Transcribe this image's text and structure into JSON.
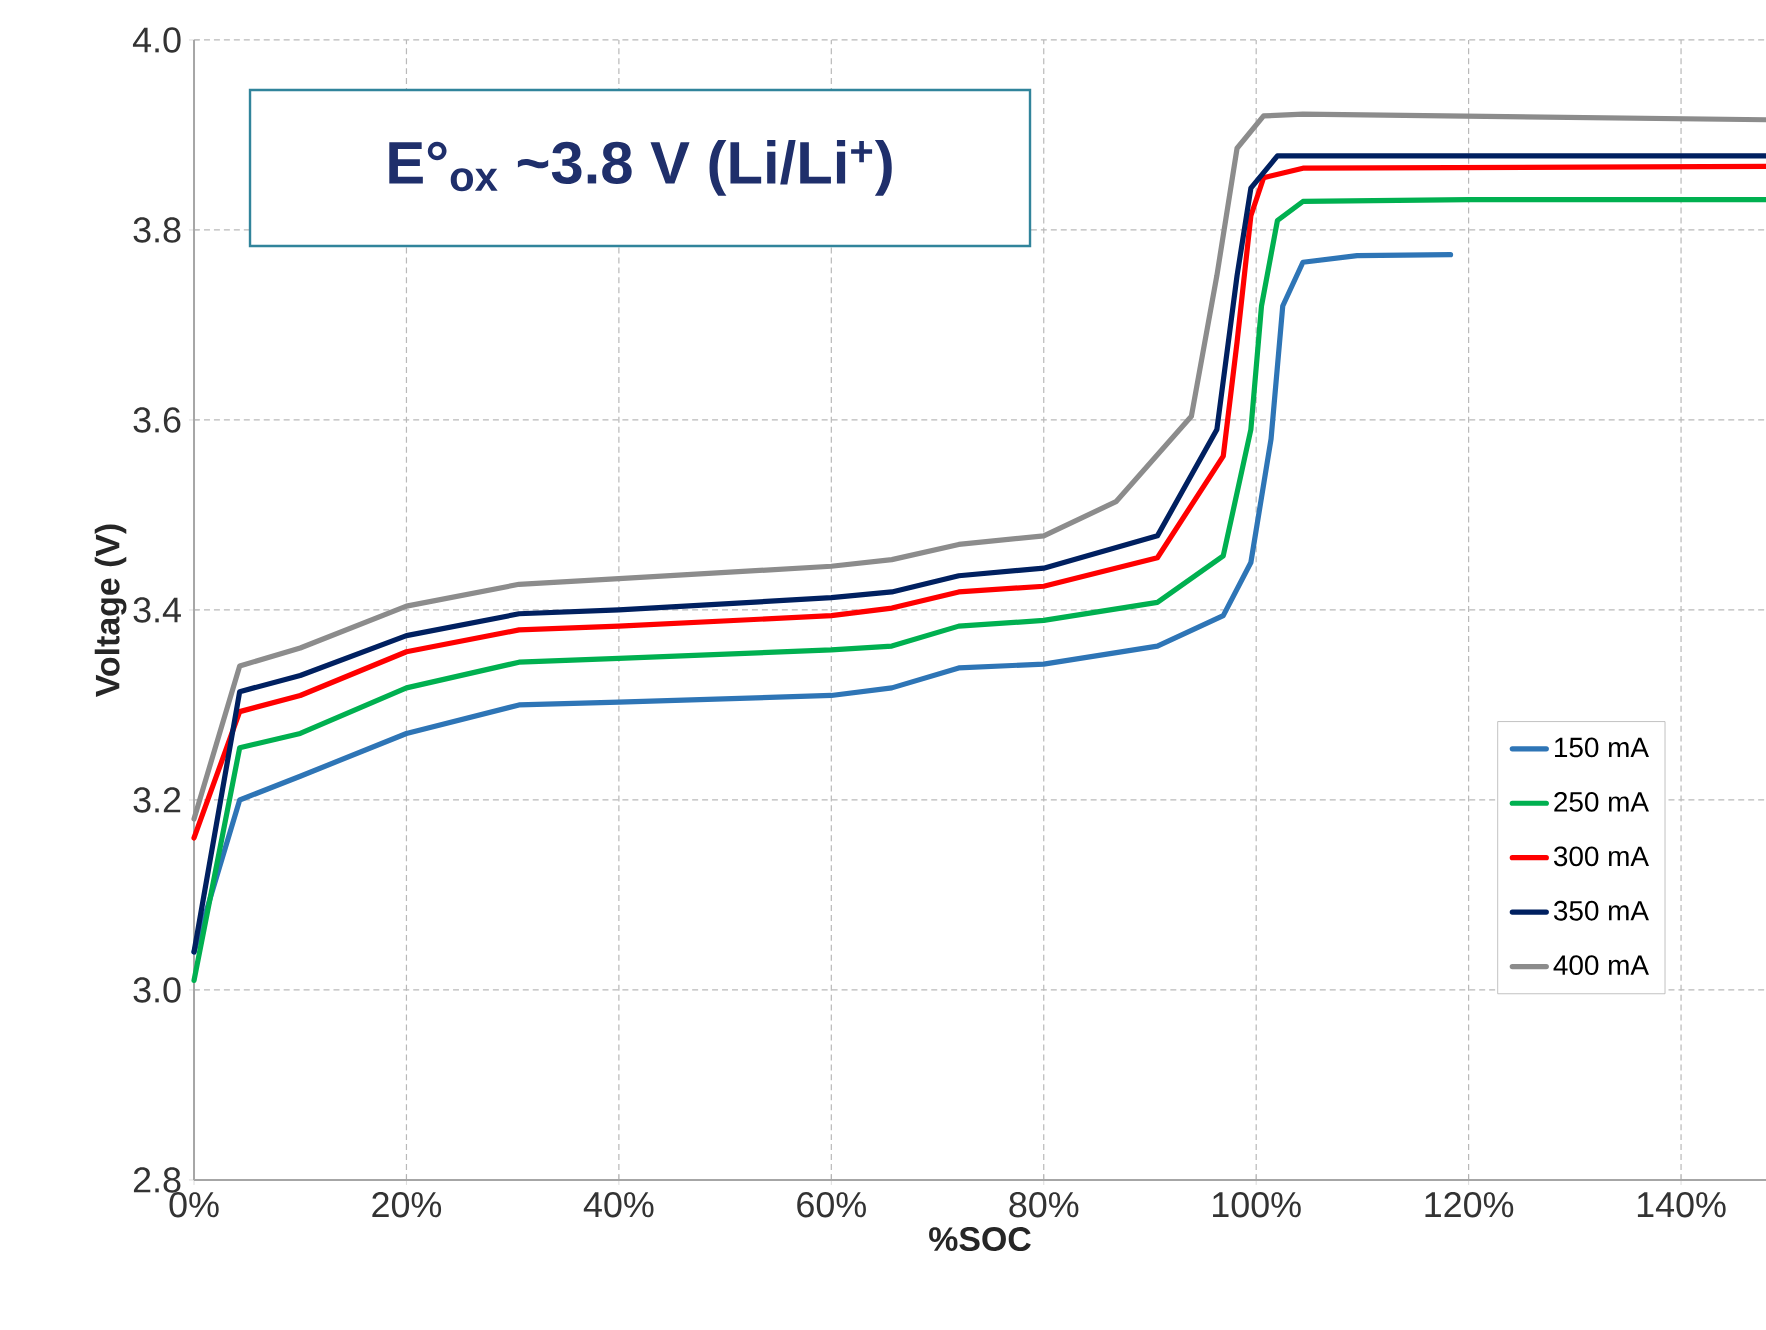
{
  "chart_data": {
    "type": "line",
    "xlabel": "%SOC",
    "ylabel": "Voltage (V)",
    "annotations": [
      "E°$_{ox}$ ~3.8 V (Li/Li$^{+}$)"
    ],
    "xlim": [
      0,
      148
    ],
    "ylim": [
      2.8,
      4.0
    ],
    "xticks": [
      {
        "value": 0,
        "label": "0%"
      },
      {
        "value": 20,
        "label": "20%"
      },
      {
        "value": 40,
        "label": "40%"
      },
      {
        "value": 60,
        "label": "60%"
      },
      {
        "value": 80,
        "label": "80%"
      },
      {
        "value": 100,
        "label": "100%"
      },
      {
        "value": 120,
        "label": "120%"
      },
      {
        "value": 140,
        "label": "140%"
      }
    ],
    "yticks": [
      {
        "value": 2.8,
        "label": "2.8"
      },
      {
        "value": 3.0,
        "label": "3.0"
      },
      {
        "value": 3.2,
        "label": "3.2"
      },
      {
        "value": 3.4,
        "label": "3.4"
      },
      {
        "value": 3.6,
        "label": "3.6"
      },
      {
        "value": 3.8,
        "label": "3.8"
      },
      {
        "value": 4.0,
        "label": "4.0"
      }
    ],
    "grid": true,
    "legend": "bottom right",
    "line_style": "solid",
    "series": [
      {
        "name": "150 mA",
        "color": "#2e75b6",
        "x": [
          0,
          4.3,
          10,
          20,
          30.6,
          40,
          60,
          65.7,
          72,
          80,
          90.7,
          96.9,
          99.5,
          101.4,
          102.5,
          104.4,
          109.5,
          118.3
        ],
        "values": [
          3.04,
          3.2,
          3.225,
          3.27,
          3.3,
          3.303,
          3.31,
          3.318,
          3.339,
          3.343,
          3.362,
          3.394,
          3.45,
          3.58,
          3.72,
          3.766,
          3.773,
          3.774
        ]
      },
      {
        "name": "250 mA",
        "color": "#00b050",
        "x": [
          0,
          4.3,
          10,
          20,
          30.6,
          40,
          60,
          65.7,
          72,
          80,
          90.7,
          96.9,
          99.5,
          100.5,
          102,
          104.4,
          120,
          148
        ],
        "values": [
          3.01,
          3.255,
          3.27,
          3.318,
          3.345,
          3.349,
          3.358,
          3.362,
          3.383,
          3.389,
          3.408,
          3.457,
          3.59,
          3.72,
          3.81,
          3.83,
          3.832,
          3.832
        ]
      },
      {
        "name": "300 mA",
        "color": "#ff0000",
        "x": [
          0,
          4.3,
          10,
          20,
          30.6,
          40,
          60,
          65.7,
          72,
          80,
          90.7,
          96.9,
          98.2,
          99.5,
          100.7,
          104.4,
          148
        ],
        "values": [
          3.16,
          3.293,
          3.31,
          3.356,
          3.379,
          3.383,
          3.394,
          3.402,
          3.419,
          3.425,
          3.455,
          3.562,
          3.682,
          3.815,
          3.855,
          3.865,
          3.867
        ]
      },
      {
        "name": "350 mA",
        "color": "#002060",
        "x": [
          0,
          4.3,
          10,
          20,
          30.6,
          40,
          60,
          65.7,
          72,
          80,
          90.7,
          96.3,
          98.2,
          99.5,
          102,
          148
        ],
        "values": [
          3.04,
          3.314,
          3.331,
          3.373,
          3.396,
          3.4,
          3.413,
          3.419,
          3.436,
          3.444,
          3.478,
          3.59,
          3.752,
          3.844,
          3.878,
          3.878
        ]
      },
      {
        "name": "400 mA",
        "color": "#8c8c8c",
        "x": [
          0,
          4.3,
          10,
          20,
          30.6,
          40,
          60,
          65.7,
          72,
          80,
          86.8,
          93.9,
          96.3,
          98.2,
          100.7,
          104.4,
          148
        ],
        "values": [
          3.18,
          3.341,
          3.36,
          3.404,
          3.427,
          3.433,
          3.446,
          3.453,
          3.469,
          3.478,
          3.514,
          3.604,
          3.752,
          3.886,
          3.92,
          3.922,
          3.916
        ]
      }
    ]
  }
}
